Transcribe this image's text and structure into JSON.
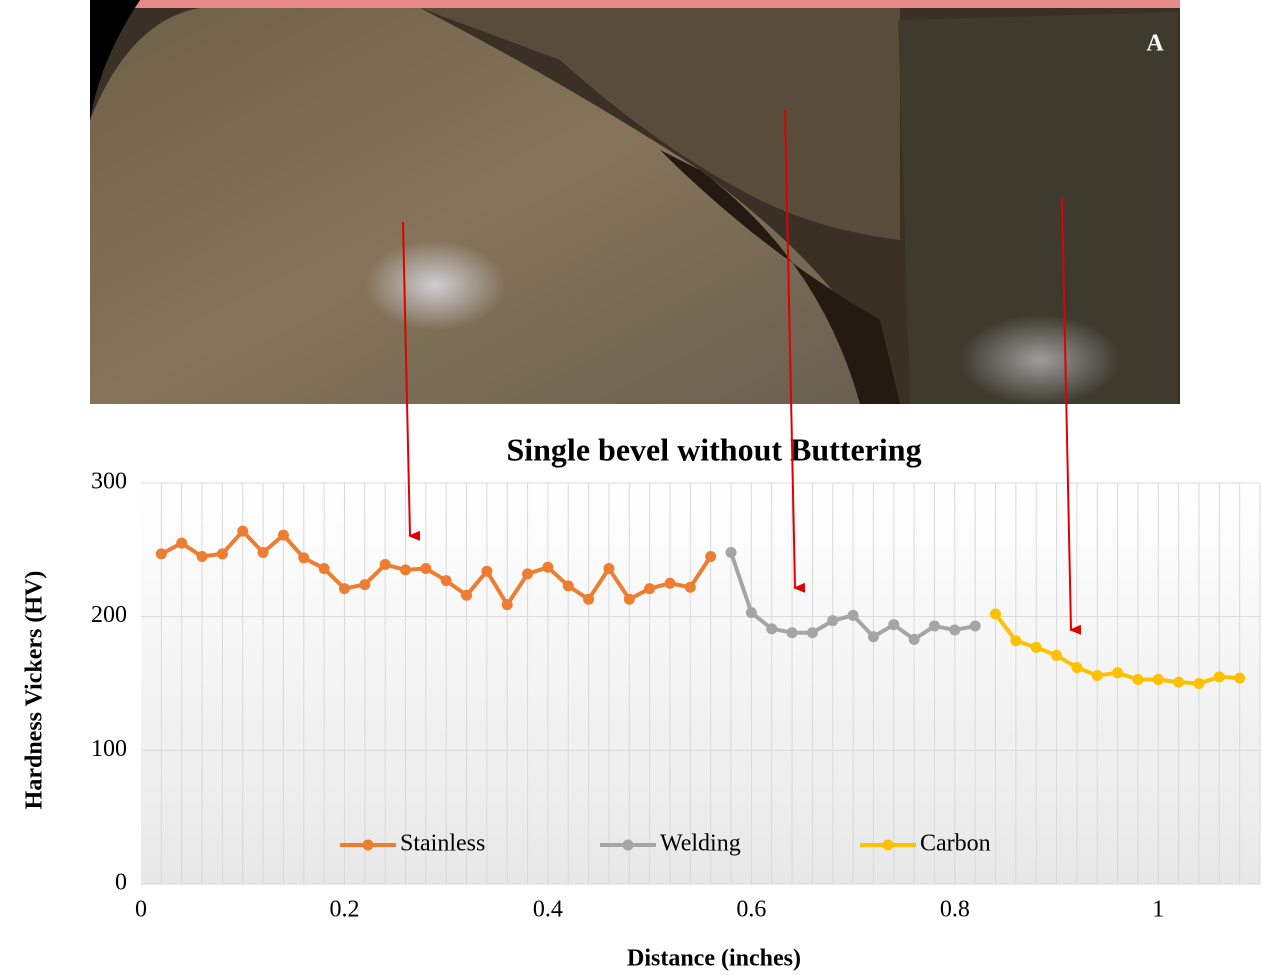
{
  "image_label": "A",
  "chart_data": {
    "type": "line",
    "title": "Single bevel without Buttering",
    "x_label": "Distance (inches)",
    "y_label": "Hardness  Vickers (HV)",
    "xlim": [
      0,
      1.1
    ],
    "xticks": [
      0,
      0.2,
      0.4,
      0.6,
      0.8,
      1
    ],
    "ylim": [
      0,
      300
    ],
    "yticks": [
      0,
      100,
      200,
      300
    ],
    "grid": true,
    "x_minor_grid": true,
    "legend": "bottom",
    "markers": true,
    "series": [
      {
        "name": "Stainless",
        "color": "#ED7D31",
        "x": [
          0.02,
          0.04,
          0.06,
          0.08,
          0.1,
          0.12,
          0.14,
          0.16,
          0.18,
          0.2,
          0.22,
          0.24,
          0.26,
          0.28,
          0.3,
          0.32,
          0.34,
          0.36,
          0.38,
          0.4,
          0.42,
          0.44,
          0.46,
          0.48,
          0.5,
          0.52,
          0.54,
          0.56
        ],
        "values": [
          247,
          255,
          245,
          247,
          264,
          248,
          261,
          244,
          236,
          221,
          224,
          239,
          235,
          236,
          227,
          216,
          234,
          209,
          232,
          237,
          223,
          213,
          236,
          213,
          221,
          225,
          222,
          245
        ]
      },
      {
        "name": "Welding",
        "color": "#A5A5A5",
        "x": [
          0.58,
          0.6,
          0.62,
          0.64,
          0.66,
          0.68,
          0.7,
          0.72,
          0.74,
          0.76,
          0.78,
          0.8,
          0.82
        ],
        "values": [
          248,
          203,
          191,
          188,
          188,
          197,
          201,
          185,
          194,
          183,
          193,
          190,
          193
        ]
      },
      {
        "name": "Carbon",
        "color": "#FFC000",
        "x": [
          0.84,
          0.86,
          0.88,
          0.9,
          0.92,
          0.94,
          0.96,
          0.98,
          1.0,
          1.02,
          1.04,
          1.06,
          1.08
        ],
        "values": [
          202,
          182,
          177,
          171,
          162,
          156,
          158,
          153,
          153,
          151,
          150,
          155,
          154
        ]
      }
    ]
  }
}
